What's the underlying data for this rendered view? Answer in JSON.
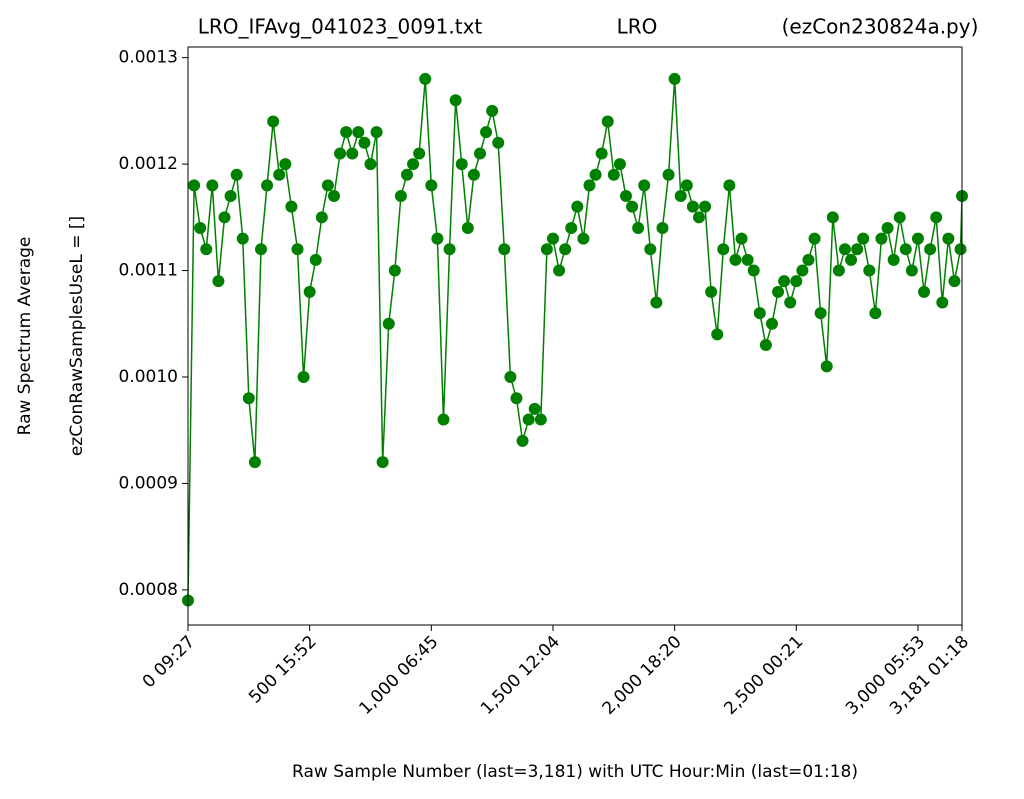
{
  "chart_data": {
    "type": "line",
    "title_left": "LRO_IFAvg_041023_0091.txt",
    "title_center": "LRO",
    "title_right": "(ezCon230824a.py)",
    "ylabel": [
      "Raw Spectrum Average",
      "ezConRawSamplesUseL = []"
    ],
    "xlabel": "Raw Sample Number (last=3,181) with UTC Hour:Min (last=01:18)",
    "xlim": [
      0,
      3181
    ],
    "ylim": [
      0.000767,
      0.00131
    ],
    "xticks": [
      {
        "value": 0,
        "label": "0  09:27"
      },
      {
        "value": 500,
        "label": "500  15:52"
      },
      {
        "value": 1000,
        "label": "1,000  06:45"
      },
      {
        "value": 1500,
        "label": "1,500  12:04"
      },
      {
        "value": 2000,
        "label": "2,000  18:20"
      },
      {
        "value": 2500,
        "label": "2,500  00:21"
      },
      {
        "value": 3000,
        "label": "3,000  05:53"
      },
      {
        "value": 3181,
        "label": "3,181  01:18"
      }
    ],
    "yticks": [
      0.0008,
      0.0009,
      {
        "value": 0.001,
        "label": "0.0010"
      },
      0.0011,
      0.0012,
      0.0013
    ],
    "color": "#008000",
    "x": [
      0,
      25,
      50,
      75,
      100,
      125,
      150,
      175,
      200,
      225,
      250,
      275,
      300,
      325,
      350,
      375,
      400,
      425,
      450,
      475,
      500,
      525,
      550,
      575,
      600,
      625,
      650,
      675,
      700,
      725,
      750,
      775,
      800,
      825,
      850,
      875,
      900,
      925,
      950,
      975,
      1000,
      1025,
      1050,
      1075,
      1100,
      1125,
      1150,
      1175,
      1200,
      1225,
      1250,
      1275,
      1300,
      1325,
      1350,
      1375,
      1400,
      1425,
      1450,
      1475,
      1500,
      1525,
      1550,
      1575,
      1600,
      1625,
      1650,
      1675,
      1700,
      1725,
      1750,
      1775,
      1800,
      1825,
      1850,
      1875,
      1900,
      1925,
      1950,
      1975,
      2000,
      2025,
      2050,
      2075,
      2100,
      2125,
      2150,
      2175,
      2200,
      2225,
      2250,
      2275,
      2300,
      2325,
      2350,
      2375,
      2400,
      2425,
      2450,
      2475,
      2500,
      2525,
      2550,
      2575,
      2600,
      2625,
      2650,
      2675,
      2700,
      2725,
      2750,
      2775,
      2800,
      2825,
      2850,
      2875,
      2900,
      2925,
      2950,
      2975,
      3000,
      3025,
      3050,
      3075,
      3100,
      3125,
      3150,
      3175,
      3181
    ],
    "values": [
      0.00079,
      0.00118,
      0.00114,
      0.00112,
      0.00118,
      0.00109,
      0.00115,
      0.00117,
      0.00119,
      0.00113,
      0.00098,
      0.00092,
      0.00112,
      0.00118,
      0.00124,
      0.00119,
      0.0012,
      0.00116,
      0.00112,
      0.001,
      0.00108,
      0.00111,
      0.00115,
      0.00118,
      0.00117,
      0.00121,
      0.00123,
      0.00121,
      0.00123,
      0.00122,
      0.0012,
      0.00123,
      0.00092,
      0.00105,
      0.0011,
      0.00117,
      0.00119,
      0.0012,
      0.00121,
      0.00128,
      0.00118,
      0.00113,
      0.00096,
      0.00112,
      0.00126,
      0.0012,
      0.00114,
      0.00119,
      0.00121,
      0.00123,
      0.00125,
      0.00122,
      0.00112,
      0.001,
      0.00098,
      0.00094,
      0.00096,
      0.00097,
      0.00096,
      0.00112,
      0.00113,
      0.0011,
      0.00112,
      0.00114,
      0.00116,
      0.00113,
      0.00118,
      0.00119,
      0.00121,
      0.00124,
      0.00119,
      0.0012,
      0.00117,
      0.00116,
      0.00114,
      0.00118,
      0.00112,
      0.00107,
      0.00114,
      0.00119,
      0.00128,
      0.00117,
      0.00118,
      0.00116,
      0.00115,
      0.00116,
      0.00108,
      0.00104,
      0.00112,
      0.00118,
      0.00111,
      0.00113,
      0.00111,
      0.0011,
      0.00106,
      0.00103,
      0.00105,
      0.00108,
      0.00109,
      0.00107,
      0.00109,
      0.0011,
      0.00111,
      0.00113,
      0.00106,
      0.00101,
      0.00115,
      0.0011,
      0.00112,
      0.00111,
      0.00112,
      0.00113,
      0.0011,
      0.00106,
      0.00113,
      0.00114,
      0.00111,
      0.00115,
      0.00112,
      0.0011,
      0.00113,
      0.00108,
      0.00112,
      0.00115,
      0.00107,
      0.00113,
      0.00109,
      0.00112,
      0.00117
    ]
  }
}
